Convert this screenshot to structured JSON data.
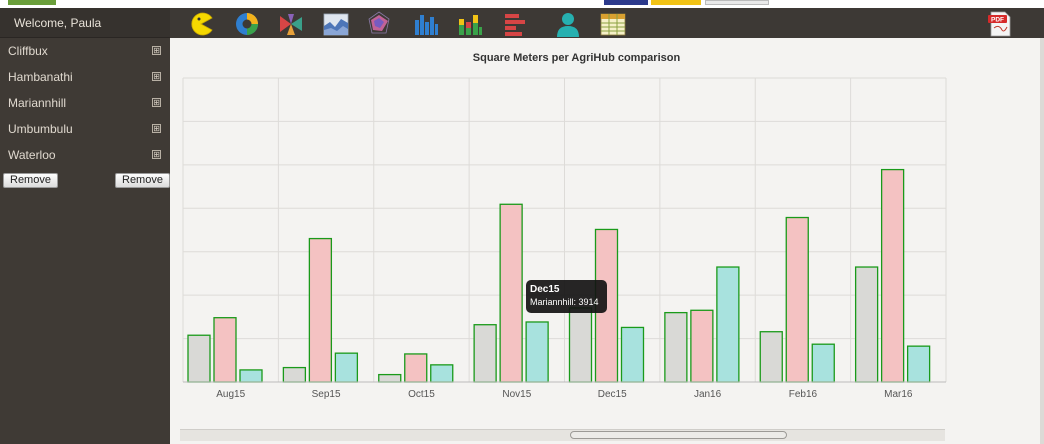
{
  "user": {
    "welcome": "Welcome,  Paula"
  },
  "sidebar": {
    "items": [
      {
        "label": "Cliffbux",
        "expand": "⊞"
      },
      {
        "label": "Hambanathi",
        "expand": "⊞"
      },
      {
        "label": "Mariannhill",
        "expand": "⊞"
      },
      {
        "label": "Umbumbulu",
        "expand": "⊞"
      },
      {
        "label": "Waterloo",
        "expand": "⊞"
      }
    ],
    "remove_left": "Remove",
    "remove_right": "Remove"
  },
  "toolbar": {
    "icons": [
      "pacman-chart-icon",
      "donut-chart-icon",
      "polar-chart-icon",
      "area-chart-icon",
      "radar-chart-icon",
      "bar-chart-icon",
      "stacked-bar-icon",
      "horizontal-bar-icon",
      "user-icon",
      "table-icon"
    ],
    "export_icon": "pdf-export-icon"
  },
  "colors": {
    "series_1": "#d9d9d6",
    "series_2": "#f4c2c2",
    "series_3": "#a8e2de",
    "bar_border": "#1a9a1a",
    "gridline": "#dddbd8"
  },
  "chart_data": {
    "type": "bar",
    "title": "Square Meters per AgriHub comparison",
    "categories": [
      "Aug15",
      "Sep15",
      "Oct15",
      "Nov15",
      "Dec15",
      "Jan16",
      "Feb16",
      "Mar16"
    ],
    "series": [
      {
        "values": [
          1200,
          370,
          190,
          1470,
          1900,
          1780,
          1290,
          2950
        ]
      },
      {
        "values": [
          1650,
          3680,
          720,
          4560,
          3914,
          1840,
          4220,
          5450
        ]
      },
      {
        "values": [
          310,
          740,
          440,
          1540,
          1400,
          2950,
          970,
          920
        ]
      }
    ],
    "ylim": [
      0,
      7800
    ],
    "grid": true,
    "legend": "none"
  },
  "tooltip": {
    "title": "Dec15",
    "body": "Mariannhill: 3914"
  },
  "scrollbar": {
    "position": 0.53
  }
}
